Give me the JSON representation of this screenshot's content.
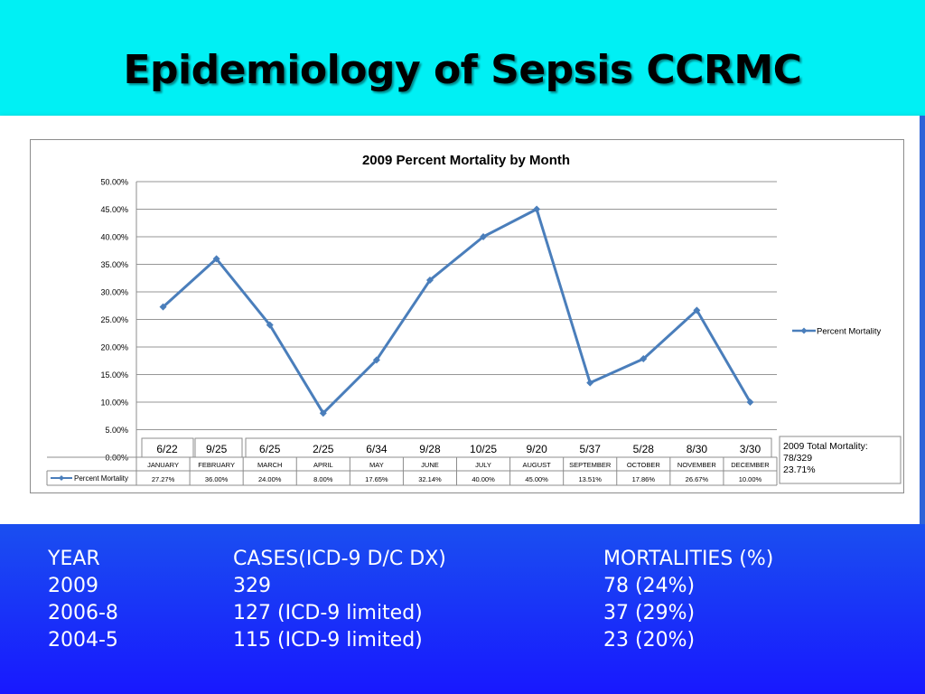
{
  "title": "Epidemiology of Sepsis CCRMC",
  "chart_data": {
    "type": "line",
    "title": "2009 Percent Mortality by Month",
    "categories": [
      "JANUARY",
      "FEBRUARY",
      "MARCH",
      "APRIL",
      "MAY",
      "JUNE",
      "JULY",
      "AUGUST",
      "SEPTEMBER",
      "OCTOBER",
      "NOVEMBER",
      "DECEMBER"
    ],
    "series": [
      {
        "name": "Percent Mortality",
        "values": [
          27.27,
          36.0,
          24.0,
          8.0,
          17.65,
          32.14,
          40.0,
          45.0,
          13.51,
          17.86,
          26.67,
          10.0
        ],
        "color": "#4a7ebb"
      }
    ],
    "value_labels": [
      "27.27%",
      "36.00%",
      "24.00%",
      "8.00%",
      "17.65%",
      "32.14%",
      "40.00%",
      "45.00%",
      "13.51%",
      "17.86%",
      "26.67%",
      "10.00%"
    ],
    "ratios": [
      "6/22",
      "9/25",
      "6/25",
      "2/25",
      "6/34",
      "9/28",
      "10/25",
      "9/20",
      "5/37",
      "5/28",
      "8/30",
      "3/30"
    ],
    "yticks": [
      "0.00%",
      "5.00%",
      "10.00%",
      "15.00%",
      "20.00%",
      "25.00%",
      "30.00%",
      "35.00%",
      "40.00%",
      "45.00%",
      "50.00%"
    ],
    "ylim": [
      0,
      50
    ],
    "grid": true,
    "legend_position": "right",
    "legend_label": "Percent Mortality",
    "data_table": true,
    "total_box": {
      "line1": "2009 Total Mortality:",
      "line2": "78/329",
      "line3": "23.71%"
    }
  },
  "stats_table": {
    "header": {
      "year": "YEAR",
      "cases": "CASES(ICD-9 D/C DX)",
      "mortalities": "MORTALITIES (%)"
    },
    "rows": [
      {
        "year": "2009",
        "cases": "329",
        "mortalities": "78 (24%)"
      },
      {
        "year": "2006-8",
        "cases": "127 (ICD-9 limited)",
        "mortalities": "37 (29%)"
      },
      {
        "year": "2004-5",
        "cases": "115 (ICD-9 limited)",
        "mortalities": "23 (20%)"
      }
    ]
  }
}
